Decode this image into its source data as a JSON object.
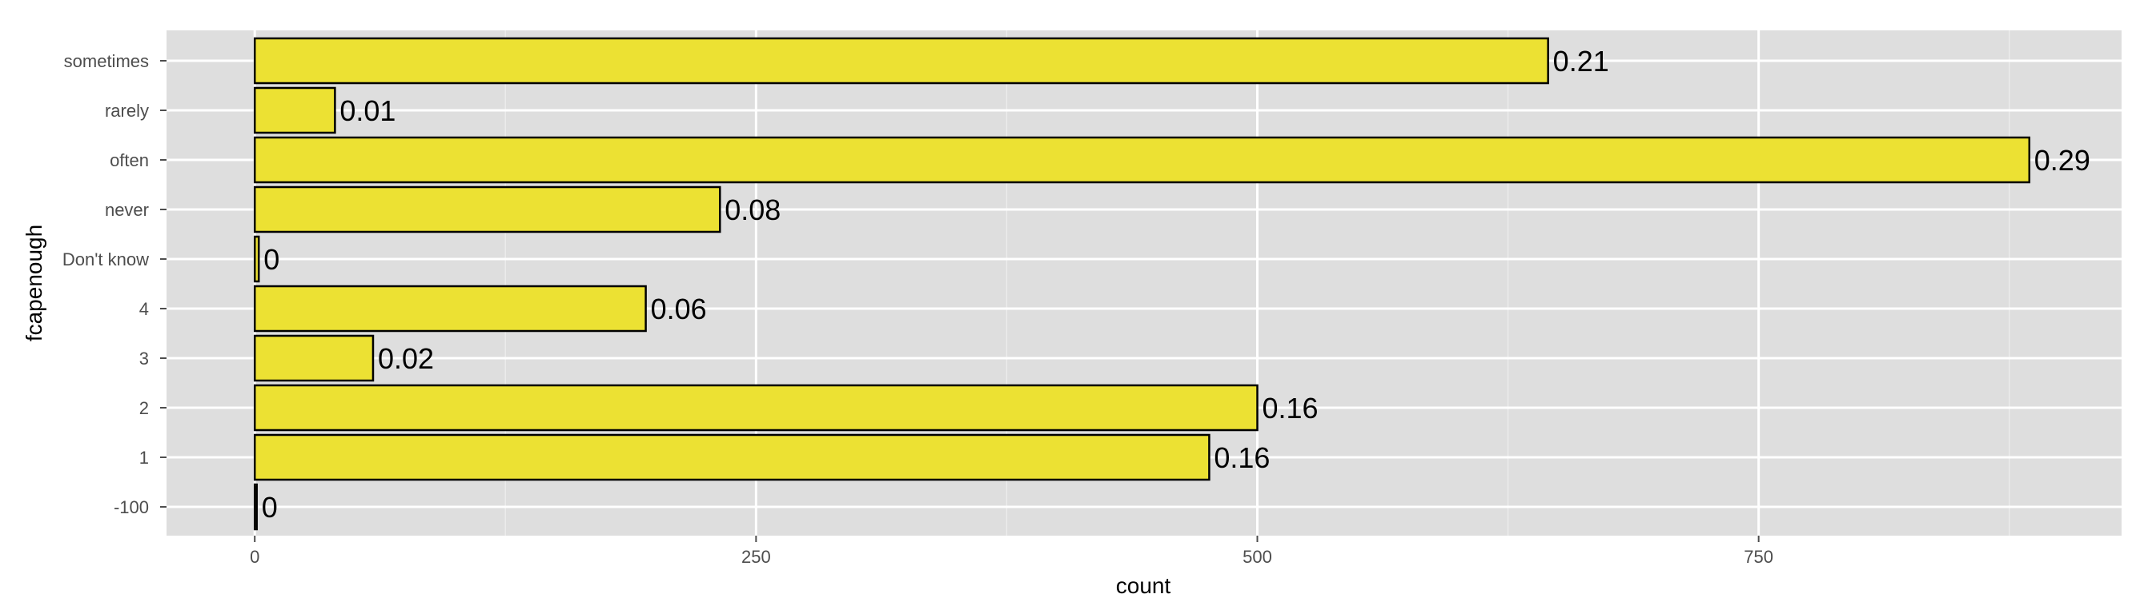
{
  "chart_data": {
    "type": "bar",
    "orientation": "horizontal",
    "xlabel": "count",
    "ylabel": "fcapenough",
    "categories": [
      "sometimes",
      "rarely",
      "often",
      "never",
      "Don't know",
      "4",
      "3",
      "2",
      "1",
      "-100"
    ],
    "values": [
      645,
      40,
      885,
      232,
      2,
      195,
      59,
      500,
      476,
      1
    ],
    "bar_labels": [
      "0.21",
      "0.01",
      "0.29",
      "0.08",
      "0",
      "0.06",
      "0.02",
      "0.16",
      "0.16",
      "0"
    ],
    "x_ticks": [
      "0",
      "250",
      "500",
      "750"
    ],
    "xlim": [
      -44,
      931
    ],
    "grid": true,
    "colors": {
      "bar_fill": "#ECE133",
      "bar_stroke": "#000000",
      "panel_bg": "#DEDEDE",
      "grid_major": "#FFFFFF",
      "grid_minor": "#EBEBEB"
    }
  }
}
